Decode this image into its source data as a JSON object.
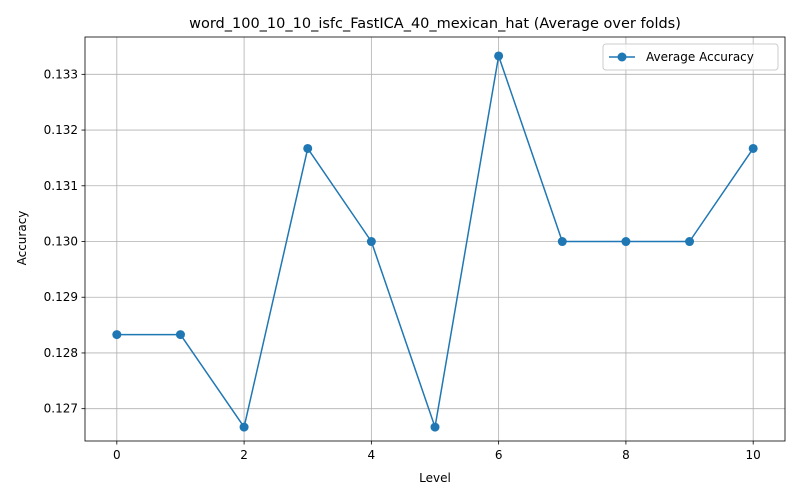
{
  "chart_data": {
    "type": "line",
    "title": "word_100_10_10_isfc_FastICA_40_mexican_hat (Average over folds)",
    "xlabel": "Level",
    "ylabel": "Accuracy",
    "x": [
      0,
      1,
      2,
      3,
      4,
      5,
      6,
      7,
      8,
      9,
      10
    ],
    "series": [
      {
        "name": "Average Accuracy",
        "color": "#1f77b4",
        "marker": "circle",
        "values": [
          0.12833,
          0.12833,
          0.12667,
          0.13167,
          0.13,
          0.12667,
          0.13333,
          0.13,
          0.13,
          0.13,
          0.13167
        ]
      }
    ],
    "xlim": [
      -0.5,
      10.5
    ],
    "ylim": [
      0.12642,
      0.13367
    ],
    "xticks": [
      0,
      2,
      4,
      6,
      8,
      10
    ],
    "yticks": [
      0.127,
      0.128,
      0.129,
      0.13,
      0.131,
      0.132,
      0.133
    ],
    "xtick_labels": [
      "0",
      "2",
      "4",
      "6",
      "8",
      "10"
    ],
    "ytick_labels": [
      "0.127",
      "0.128",
      "0.129",
      "0.130",
      "0.131",
      "0.132",
      "0.133"
    ],
    "grid": true,
    "legend_position": "top-right"
  }
}
